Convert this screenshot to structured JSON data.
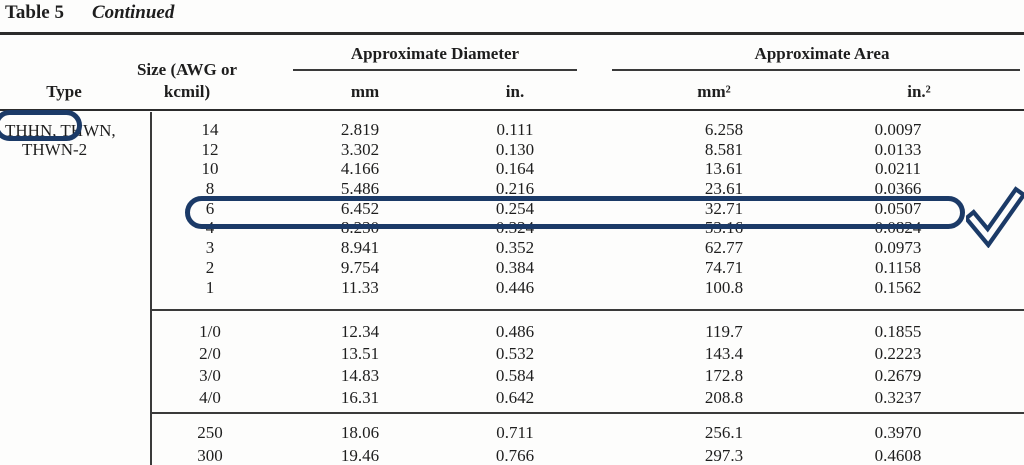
{
  "title": {
    "label": "Table 5",
    "continued": "Continued"
  },
  "header": {
    "type": "Type",
    "size_line1": "Size (AWG or",
    "size_line2": "kcmil)",
    "diameter_group": "Approximate Diameter",
    "area_group": "Approximate Area",
    "col_mm": "mm",
    "col_in": "in.",
    "col_mm2": "mm²",
    "col_in2": "in.²"
  },
  "type_cell": {
    "line1": "THHN, THWN,",
    "line2": "THWN-2"
  },
  "sections": [
    {
      "rows": [
        [
          "14",
          "2.819",
          "0.111",
          "6.258",
          "0.0097"
        ],
        [
          "12",
          "3.302",
          "0.130",
          "8.581",
          "0.0133"
        ],
        [
          "10",
          "4.166",
          "0.164",
          "13.61",
          "0.0211"
        ],
        [
          "8",
          "5.486",
          "0.216",
          "23.61",
          "0.0366"
        ],
        [
          "6",
          "6.452",
          "0.254",
          "32.71",
          "0.0507"
        ],
        [
          "4",
          "8.230",
          "0.324",
          "53.16",
          "0.0824"
        ],
        [
          "3",
          "8.941",
          "0.352",
          "62.77",
          "0.0973"
        ],
        [
          "2",
          "9.754",
          "0.384",
          "74.71",
          "0.1158"
        ],
        [
          "1",
          "11.33",
          "0.446",
          "100.8",
          "0.1562"
        ]
      ]
    },
    {
      "rows": [
        [
          "1/0",
          "12.34",
          "0.486",
          "119.7",
          "0.1855"
        ],
        [
          "2/0",
          "13.51",
          "0.532",
          "143.4",
          "0.2223"
        ],
        [
          "3/0",
          "14.83",
          "0.584",
          "172.8",
          "0.2679"
        ],
        [
          "4/0",
          "16.31",
          "0.642",
          "208.8",
          "0.3237"
        ]
      ]
    },
    {
      "rows": [
        [
          "250",
          "18.06",
          "0.711",
          "256.1",
          "0.3970"
        ],
        [
          "300",
          "19.46",
          "0.766",
          "297.3",
          "0.4608"
        ]
      ]
    }
  ],
  "annotations": {
    "color": "#1b3a67",
    "circled_text": "THHN, THWN",
    "highlighted_row_size": "6",
    "checkmark": "✓"
  }
}
